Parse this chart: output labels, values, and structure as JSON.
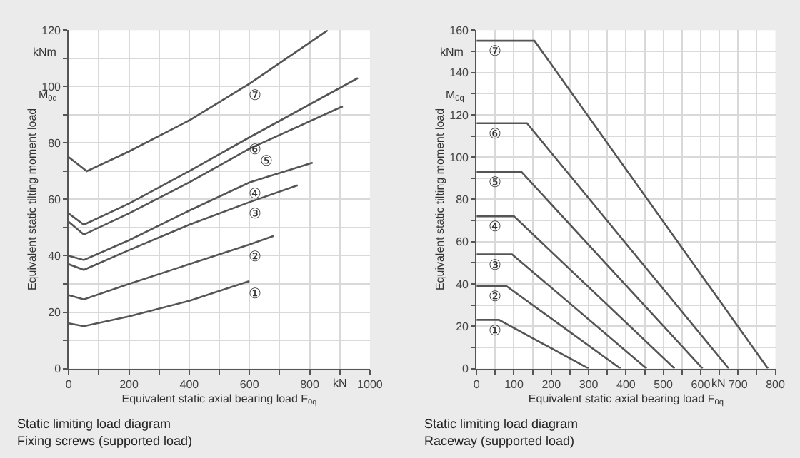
{
  "chart_data": [
    {
      "type": "line",
      "title": "Static limiting load diagram",
      "subtitle": "Fixing screws (supported load)",
      "xlabel": "Equivalent static axial bearing load F$_{0q}$",
      "ylabel": "Equivalent static tilting moment load",
      "annotations": [
        "kNm",
        "M$_{0q}$",
        "kN"
      ],
      "xlim": [
        0,
        1000
      ],
      "ylim": [
        0,
        120
      ],
      "xticks": [
        0,
        {
          "value": 100,
          "label": null
        },
        200,
        {
          "value": 300,
          "label": null
        },
        400,
        {
          "value": 500,
          "label": null
        },
        600,
        {
          "value": 700,
          "label": null
        },
        800,
        {
          "value": 900,
          "label": null
        },
        1000
      ],
      "yticks": [
        0,
        {
          "value": 10,
          "label": null
        },
        20,
        {
          "value": 30,
          "label": null
        },
        40,
        {
          "value": 50,
          "label": null
        },
        60,
        {
          "value": 70,
          "label": null
        },
        80,
        {
          "value": 90,
          "label": null
        },
        100,
        {
          "value": 110,
          "label": null
        },
        120
      ],
      "grid": true,
      "marker": "none",
      "line_style": "solid",
      "series": [
        {
          "name": "①",
          "color": "#555555",
          "x": [
            0,
            50,
            200,
            400,
            600
          ],
          "values": [
            16,
            15,
            18.5,
            24,
            31
          ]
        },
        {
          "name": "②",
          "color": "#555555",
          "x": [
            0,
            50,
            200,
            400,
            600,
            680
          ],
          "values": [
            26,
            24.5,
            30,
            37,
            44,
            47
          ]
        },
        {
          "name": "③",
          "color": "#555555",
          "x": [
            0,
            50,
            200,
            400,
            600,
            760
          ],
          "values": [
            37,
            35,
            42,
            51,
            59,
            65
          ]
        },
        {
          "name": "④",
          "color": "#555555",
          "x": [
            0,
            50,
            200,
            400,
            600,
            810
          ],
          "values": [
            40,
            38.5,
            45.5,
            56,
            66,
            73
          ]
        },
        {
          "name": "⑤",
          "color": "#555555",
          "x": [
            0,
            50,
            200,
            400,
            600,
            910
          ],
          "values": [
            52,
            47.5,
            55,
            66,
            78,
            93
          ]
        },
        {
          "name": "⑥",
          "color": "#555555",
          "x": [
            0,
            50,
            200,
            400,
            600,
            960
          ],
          "values": [
            55,
            51,
            58.5,
            70,
            82,
            103
          ]
        },
        {
          "name": "⑦",
          "color": "#555555",
          "x": [
            0,
            60,
            200,
            400,
            600,
            860
          ],
          "values": [
            75,
            70,
            77,
            88,
            101,
            120
          ]
        }
      ]
    },
    {
      "type": "line",
      "title": "Static limiting load diagram",
      "subtitle": "Raceway (supported load)",
      "xlabel": "Equivalent static axial bearing load F$_{0q}$",
      "ylabel": "Equivalent static tilting moment load",
      "annotations": [
        "kNm",
        "M$_{0q}$",
        "kN"
      ],
      "xlim": [
        0,
        800
      ],
      "ylim": [
        0,
        160
      ],
      "xticks": [
        0,
        {
          "value": 50,
          "label": null
        },
        100,
        {
          "value": 150,
          "label": null
        },
        200,
        {
          "value": 250,
          "label": null
        },
        300,
        {
          "value": 350,
          "label": null
        },
        400,
        {
          "value": 450,
          "label": null
        },
        500,
        {
          "value": 550,
          "label": null
        },
        600,
        {
          "value": 650,
          "label": null
        },
        700,
        {
          "value": 750,
          "label": null
        },
        800
      ],
      "yticks": [
        0,
        {
          "value": 10,
          "label": null
        },
        20,
        {
          "value": 30,
          "label": null
        },
        40,
        {
          "value": 50,
          "label": null
        },
        60,
        {
          "value": 70,
          "label": null
        },
        80,
        {
          "value": 90,
          "label": null
        },
        100,
        {
          "value": 110,
          "label": null
        },
        120,
        {
          "value": 130,
          "label": null
        },
        140,
        {
          "value": 150,
          "label": null
        },
        160
      ],
      "grid": true,
      "marker": "none",
      "line_style": "solid",
      "series": [
        {
          "name": "①",
          "color": "#555555",
          "x": [
            0,
            60,
            300
          ],
          "values": [
            23,
            23,
            0
          ]
        },
        {
          "name": "②",
          "color": "#555555",
          "x": [
            0,
            80,
            385
          ],
          "values": [
            39,
            39,
            0
          ]
        },
        {
          "name": "③",
          "color": "#555555",
          "x": [
            0,
            95,
            455
          ],
          "values": [
            54,
            54,
            0
          ]
        },
        {
          "name": "④",
          "color": "#555555",
          "x": [
            0,
            100,
            530
          ],
          "values": [
            72,
            72,
            0
          ]
        },
        {
          "name": "⑤",
          "color": "#555555",
          "x": [
            0,
            120,
            605
          ],
          "values": [
            93,
            93,
            0
          ]
        },
        {
          "name": "⑥",
          "color": "#555555",
          "x": [
            0,
            135,
            675
          ],
          "values": [
            116,
            116,
            0
          ]
        },
        {
          "name": "⑦",
          "color": "#555555",
          "x": [
            0,
            155,
            780
          ],
          "values": [
            155,
            155,
            0
          ]
        }
      ]
    }
  ]
}
